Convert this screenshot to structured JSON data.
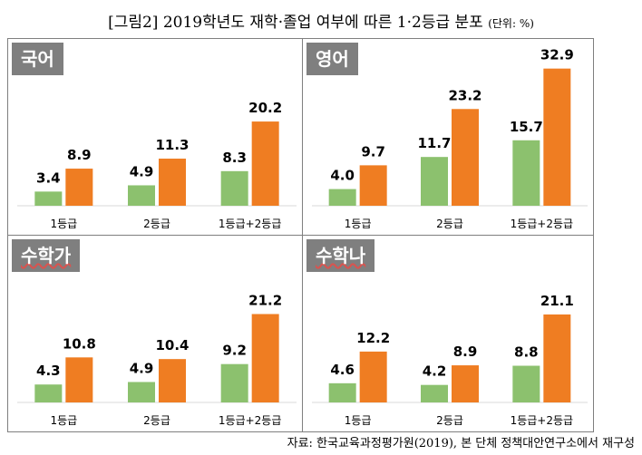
{
  "title": {
    "main": "[그림2] 2019학년도 재학·졸업 여부에 따른 1·2등급 분포",
    "unit": "(단위: %)"
  },
  "source": "자료: 한국교육과정평가원(2019), 본 단체 정책대안연구소에서 재구성",
  "colors": {
    "series1": "#8cc16e",
    "series2": "#ef7d22",
    "panel_title_bg": "#7f7f7f"
  },
  "chart_data": [
    {
      "type": "bar",
      "title": "국어",
      "categories": [
        "1등급",
        "2등급",
        "1등급+2등급"
      ],
      "series": [
        {
          "values": [
            3.4,
            4.9,
            8.3
          ]
        },
        {
          "values": [
            8.9,
            11.3,
            20.2
          ]
        }
      ]
    },
    {
      "type": "bar",
      "title": "영어",
      "categories": [
        "1등급",
        "2등급",
        "1등급+2등급"
      ],
      "series": [
        {
          "values": [
            4.0,
            11.7,
            15.7
          ]
        },
        {
          "values": [
            9.7,
            23.2,
            32.9
          ]
        }
      ]
    },
    {
      "type": "bar",
      "title": "수학가",
      "categories": [
        "1등급",
        "2등급",
        "1등급+2등급"
      ],
      "series": [
        {
          "values": [
            4.3,
            4.9,
            9.2
          ]
        },
        {
          "values": [
            10.8,
            10.4,
            21.2
          ]
        }
      ]
    },
    {
      "type": "bar",
      "title": "수학나",
      "categories": [
        "1등급",
        "2등급",
        "1등급+2등급"
      ],
      "series": [
        {
          "values": [
            4.6,
            4.2,
            8.8
          ]
        },
        {
          "values": [
            12.2,
            8.9,
            21.1
          ]
        }
      ]
    }
  ]
}
